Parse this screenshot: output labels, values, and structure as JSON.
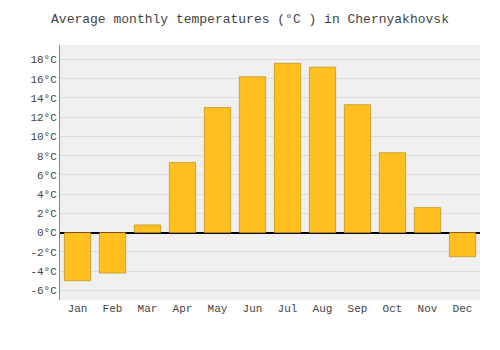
{
  "chart_data": {
    "type": "bar",
    "title": "Average monthly temperatures (°C ) in Chernyakhovsk",
    "categories": [
      "Jan",
      "Feb",
      "Mar",
      "Apr",
      "May",
      "Jun",
      "Jul",
      "Aug",
      "Sep",
      "Oct",
      "Nov",
      "Dec"
    ],
    "values": [
      -5.0,
      -4.2,
      0.8,
      7.3,
      13.0,
      16.2,
      17.6,
      17.2,
      13.3,
      8.3,
      2.6,
      -2.5
    ],
    "color": "#FFC020",
    "ylim": [
      -7.0,
      19.5
    ],
    "yticks": [
      {
        "value": -6,
        "label": "-6°C"
      },
      {
        "value": -4,
        "label": "-4°C"
      },
      {
        "value": -2,
        "label": "-2°C"
      },
      {
        "value": 0,
        "label": "0°C"
      },
      {
        "value": 2,
        "label": "2°C"
      },
      {
        "value": 4,
        "label": "4°C"
      },
      {
        "value": 6,
        "label": "6°C"
      },
      {
        "value": 8,
        "label": "8°C"
      },
      {
        "value": 10,
        "label": "10°C"
      },
      {
        "value": 12,
        "label": "12°C"
      },
      {
        "value": 14,
        "label": "14°C"
      },
      {
        "value": 16,
        "label": "16°C"
      },
      {
        "value": 18,
        "label": "18°C"
      }
    ],
    "grid": true
  }
}
